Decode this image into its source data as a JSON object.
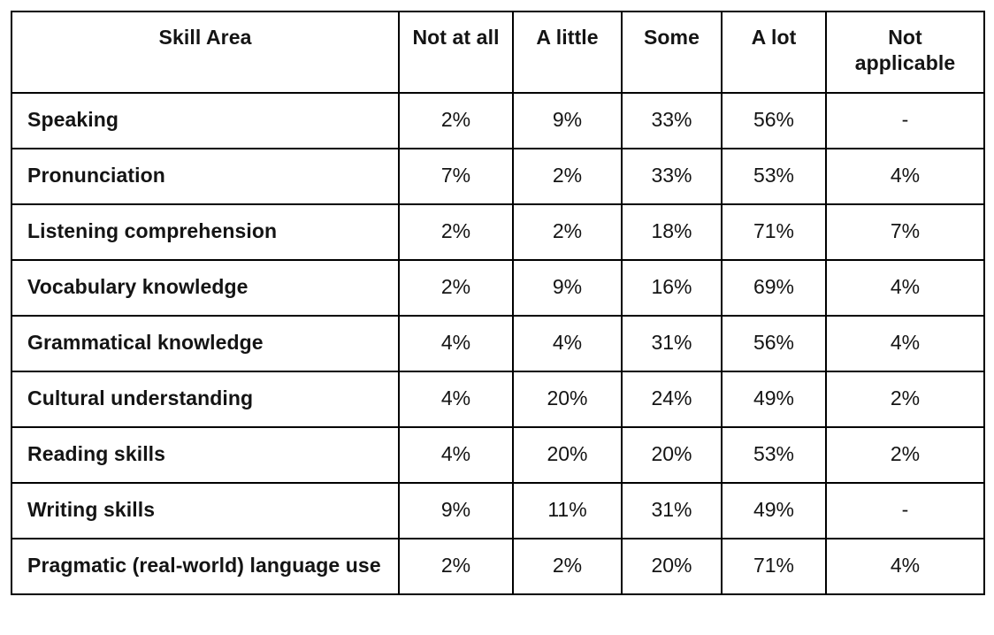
{
  "table": {
    "columns": [
      "Skill Area",
      "Not at all",
      "A little",
      "Some",
      "A lot",
      "Not applicable"
    ],
    "rows": [
      {
        "skill": "Speaking",
        "values": [
          "2%",
          "9%",
          "33%",
          "56%",
          "-"
        ]
      },
      {
        "skill": "Pronunciation",
        "values": [
          "7%",
          "2%",
          "33%",
          "53%",
          "4%"
        ]
      },
      {
        "skill": "Listening comprehension",
        "values": [
          "2%",
          "2%",
          "18%",
          "71%",
          "7%"
        ]
      },
      {
        "skill": "Vocabulary knowledge",
        "values": [
          "2%",
          "9%",
          "16%",
          "69%",
          "4%"
        ]
      },
      {
        "skill": "Grammatical knowledge",
        "values": [
          "4%",
          "4%",
          "31%",
          "56%",
          "4%"
        ]
      },
      {
        "skill": "Cultural understanding",
        "values": [
          "4%",
          "20%",
          "24%",
          "49%",
          "2%"
        ]
      },
      {
        "skill": "Reading skills",
        "values": [
          "4%",
          "20%",
          "20%",
          "53%",
          "2%"
        ]
      },
      {
        "skill": "Writing skills",
        "values": [
          "9%",
          "11%",
          "31%",
          "49%",
          "-"
        ]
      },
      {
        "skill": "Pragmatic (real-world) language use",
        "values": [
          "2%",
          "2%",
          "20%",
          "71%",
          "4%"
        ]
      }
    ],
    "border_color": "#000000",
    "text_color": "#141414",
    "background_color": "#ffffff"
  },
  "chart_data": {
    "type": "table",
    "title": "",
    "columns": [
      "Skill Area",
      "Not at all",
      "A little",
      "Some",
      "A lot",
      "Not applicable"
    ],
    "rows": [
      [
        "Speaking",
        "2%",
        "9%",
        "33%",
        "56%",
        "-"
      ],
      [
        "Pronunciation",
        "7%",
        "2%",
        "33%",
        "53%",
        "4%"
      ],
      [
        "Listening comprehension",
        "2%",
        "2%",
        "18%",
        "71%",
        "7%"
      ],
      [
        "Vocabulary knowledge",
        "2%",
        "9%",
        "16%",
        "69%",
        "4%"
      ],
      [
        "Grammatical knowledge",
        "4%",
        "4%",
        "31%",
        "56%",
        "4%"
      ],
      [
        "Cultural understanding",
        "4%",
        "20%",
        "24%",
        "49%",
        "2%"
      ],
      [
        "Reading skills",
        "4%",
        "20%",
        "20%",
        "53%",
        "2%"
      ],
      [
        "Writing skills",
        "9%",
        "11%",
        "31%",
        "49%",
        "-"
      ],
      [
        "Pragmatic (real-world) language use",
        "2%",
        "2%",
        "20%",
        "71%",
        "4%"
      ]
    ]
  }
}
